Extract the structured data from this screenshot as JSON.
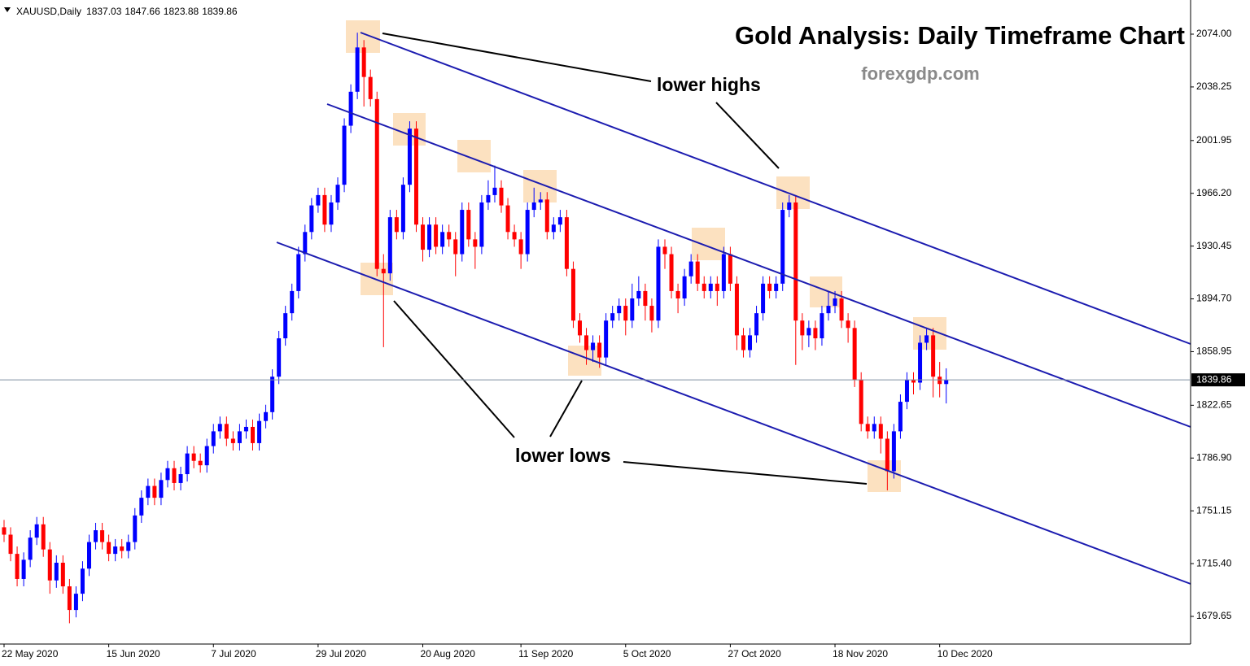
{
  "chart_data": {
    "type": "candlestick",
    "symbol": "XAUUSD,Daily",
    "title": "Gold Analysis: Daily Timeframe Chart",
    "subtitle": "forexgdp.com",
    "annotations": [
      "lower highs",
      "lower lows"
    ],
    "up_color": "#0000ff",
    "down_color": "#ff0000",
    "open": [
      1740,
      1735,
      1722,
      1705,
      1718,
      1733,
      1742,
      1725,
      1704,
      1716,
      1700,
      1684,
      1695,
      1712,
      1730,
      1738,
      1730,
      1722,
      1727,
      1724,
      1730,
      1748,
      1760,
      1768,
      1760,
      1772,
      1780,
      1770,
      1776,
      1790,
      1785,
      1782,
      1795,
      1805,
      1810,
      1800,
      1797,
      1805,
      1808,
      1797,
      1812,
      1818,
      1842,
      1868,
      1885,
      1900,
      1925,
      1940,
      1958,
      1965,
      1945,
      1960,
      1972,
      2012,
      2035,
      2065,
      2045,
      2030,
      1915,
      1912,
      1950,
      1940,
      1972,
      2010,
      1945,
      1928,
      1945,
      1930,
      1940,
      1935,
      1925,
      1955,
      1935,
      1930,
      1960,
      1965,
      1970,
      1958,
      1940,
      1935,
      1925,
      1955,
      1960,
      1962,
      1940,
      1945,
      1950,
      1915,
      1880,
      1870,
      1860,
      1865,
      1855,
      1880,
      1885,
      1890,
      1880,
      1895,
      1900,
      1890,
      1880,
      1930,
      1925,
      1900,
      1895,
      1910,
      1920,
      1905,
      1900,
      1905,
      1900,
      1925,
      1905,
      1870,
      1860,
      1870,
      1885,
      1905,
      1900,
      1905,
      1955,
      1960,
      1880,
      1870,
      1875,
      1868,
      1885,
      1890,
      1895,
      1880,
      1875,
      1840,
      1810,
      1805,
      1810,
      1800,
      1778,
      1805,
      1825,
      1840,
      1838,
      1865,
      1870,
      1842,
      1837.03
    ],
    "high": [
      1745,
      1740,
      1727,
      1723,
      1738,
      1747,
      1747,
      1730,
      1721,
      1721,
      1705,
      1700,
      1717,
      1735,
      1743,
      1743,
      1735,
      1732,
      1732,
      1735,
      1753,
      1765,
      1773,
      1773,
      1777,
      1785,
      1785,
      1781,
      1795,
      1795,
      1790,
      1800,
      1810,
      1815,
      1815,
      1805,
      1810,
      1813,
      1813,
      1817,
      1823,
      1847,
      1873,
      1890,
      1905,
      1930,
      1945,
      1963,
      1970,
      1970,
      1965,
      1977,
      2017,
      2040,
      2075,
      2070,
      2050,
      2035,
      1925,
      1955,
      1955,
      1977,
      2015,
      2015,
      1950,
      1950,
      1950,
      1945,
      1945,
      1940,
      1960,
      1960,
      1940,
      1965,
      1975,
      1985,
      1975,
      1963,
      1945,
      1940,
      1960,
      1970,
      1967,
      1967,
      1950,
      1955,
      1955,
      1920,
      1885,
      1875,
      1870,
      1870,
      1885,
      1890,
      1895,
      1895,
      1905,
      1910,
      1905,
      1895,
      1935,
      1935,
      1930,
      1905,
      1915,
      1925,
      1925,
      1910,
      1910,
      1910,
      1930,
      1930,
      1910,
      1875,
      1875,
      1890,
      1910,
      1910,
      1910,
      1960,
      1965,
      1965,
      1885,
      1880,
      1880,
      1890,
      1900,
      1900,
      1900,
      1885,
      1880,
      1845,
      1815,
      1815,
      1815,
      1805,
      1810,
      1830,
      1845,
      1845,
      1870,
      1875,
      1875,
      1852,
      1847.66
    ],
    "low": [
      1730,
      1717,
      1700,
      1700,
      1713,
      1728,
      1720,
      1695,
      1699,
      1695,
      1675,
      1679,
      1690,
      1707,
      1725,
      1725,
      1717,
      1717,
      1719,
      1719,
      1725,
      1743,
      1755,
      1755,
      1755,
      1767,
      1765,
      1765,
      1771,
      1780,
      1777,
      1777,
      1790,
      1800,
      1795,
      1792,
      1792,
      1800,
      1792,
      1792,
      1807,
      1813,
      1837,
      1863,
      1880,
      1895,
      1920,
      1935,
      1953,
      1940,
      1940,
      1955,
      1967,
      2007,
      2030,
      2025,
      2025,
      1910,
      1862,
      1907,
      1935,
      1935,
      1967,
      1940,
      1920,
      1923,
      1925,
      1925,
      1930,
      1910,
      1920,
      1930,
      1915,
      1925,
      1955,
      1960,
      1953,
      1935,
      1930,
      1915,
      1920,
      1950,
      1955,
      1935,
      1935,
      1940,
      1910,
      1875,
      1865,
      1850,
      1852,
      1848,
      1850,
      1875,
      1880,
      1870,
      1875,
      1890,
      1880,
      1872,
      1875,
      1915,
      1895,
      1885,
      1890,
      1905,
      1900,
      1895,
      1895,
      1890,
      1895,
      1900,
      1860,
      1855,
      1855,
      1865,
      1880,
      1895,
      1895,
      1900,
      1950,
      1850,
      1860,
      1862,
      1860,
      1863,
      1880,
      1885,
      1875,
      1865,
      1835,
      1805,
      1800,
      1800,
      1790,
      1765,
      1773,
      1800,
      1820,
      1830,
      1833,
      1860,
      1828,
      1828,
      1823.88
    ],
    "close": [
      1735,
      1722,
      1705,
      1718,
      1733,
      1742,
      1725,
      1704,
      1716,
      1700,
      1684,
      1695,
      1712,
      1730,
      1738,
      1730,
      1722,
      1727,
      1724,
      1730,
      1748,
      1760,
      1768,
      1760,
      1772,
      1780,
      1770,
      1776,
      1790,
      1785,
      1782,
      1795,
      1805,
      1810,
      1800,
      1797,
      1805,
      1808,
      1797,
      1812,
      1818,
      1842,
      1868,
      1885,
      1900,
      1925,
      1940,
      1958,
      1965,
      1945,
      1960,
      1972,
      2012,
      2035,
      2065,
      2045,
      2030,
      1915,
      1912,
      1950,
      1940,
      1972,
      2010,
      1945,
      1928,
      1945,
      1930,
      1940,
      1935,
      1925,
      1955,
      1935,
      1930,
      1960,
      1965,
      1970,
      1958,
      1940,
      1935,
      1925,
      1955,
      1960,
      1962,
      1940,
      1945,
      1950,
      1915,
      1880,
      1870,
      1860,
      1865,
      1855,
      1880,
      1885,
      1890,
      1880,
      1895,
      1900,
      1890,
      1880,
      1930,
      1925,
      1900,
      1895,
      1910,
      1920,
      1905,
      1900,
      1905,
      1900,
      1925,
      1905,
      1870,
      1860,
      1870,
      1885,
      1905,
      1900,
      1905,
      1955,
      1960,
      1880,
      1870,
      1875,
      1868,
      1885,
      1890,
      1895,
      1880,
      1875,
      1840,
      1810,
      1805,
      1810,
      1800,
      1778,
      1805,
      1825,
      1840,
      1838,
      1865,
      1870,
      1842,
      1837.03,
      1839.86
    ],
    "xlim": [
      -0.62,
      181.35
    ],
    "xticks": [
      {
        "value": 0,
        "label": "22 May 2020"
      },
      {
        "value": 16,
        "label": "15 Jun 2020"
      },
      {
        "value": 32,
        "label": "7 Jul 2020"
      },
      {
        "value": 48,
        "label": "29 Jul 2020"
      },
      {
        "value": 64,
        "label": "20 Aug 2020"
      },
      {
        "value": 79,
        "label": "11 Sep 2020"
      },
      {
        "value": 95,
        "label": "5 Oct 2020"
      },
      {
        "value": 111,
        "label": "27 Oct 2020"
      },
      {
        "value": 127,
        "label": "18 Nov 2020"
      },
      {
        "value": 143,
        "label": "10 Dec 2020"
      }
    ],
    "ylim": [
      1660.92,
      2097.13
    ],
    "yticks": [
      {
        "value": 2074,
        "label": "2074.00"
      },
      2038.25,
      2001.95,
      {
        "value": 1966.2,
        "label": "1966.20"
      },
      1930.45,
      {
        "value": 1894.7,
        "label": "1894.70"
      },
      1858.95,
      1822.65,
      {
        "value": 1786.9,
        "label": "1786.90"
      },
      1751.15,
      {
        "value": 1715.4,
        "label": "1715.40"
      },
      1679.65
    ],
    "grid": false
  }
}
